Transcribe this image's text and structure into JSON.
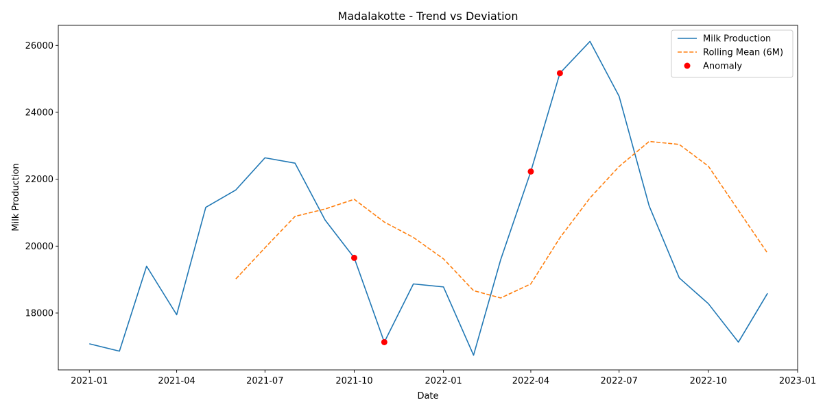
{
  "chart_data": {
    "type": "line",
    "title": "Madalakotte - Trend vs Deviation",
    "xlabel": "Date",
    "ylabel": "Milk Production",
    "x": [
      "2021-01-01",
      "2021-02-01",
      "2021-03-01",
      "2021-04-01",
      "2021-05-01",
      "2021-06-01",
      "2021-07-01",
      "2021-08-01",
      "2021-09-01",
      "2021-10-01",
      "2021-11-01",
      "2021-12-01",
      "2022-01-01",
      "2022-02-01",
      "2022-03-01",
      "2022-04-01",
      "2022-05-01",
      "2022-06-01",
      "2022-07-01",
      "2022-08-01",
      "2022-09-01",
      "2022-10-01",
      "2022-11-01",
      "2022-12-01"
    ],
    "x_ticks": [
      "2021-01",
      "2021-04",
      "2021-07",
      "2021-10",
      "2022-01",
      "2022-04",
      "2022-07",
      "2022-10",
      "2023-01"
    ],
    "xlim": [
      "2020-11-30",
      "2023-01-01"
    ],
    "y_ticks": [
      18000,
      20000,
      22000,
      24000,
      26000
    ],
    "ylim": [
      16300,
      26600
    ],
    "grid": false,
    "legend_position": "top-right",
    "series": [
      {
        "name": "Milk Production",
        "style": "solid",
        "color": "#1f77b4",
        "values": [
          17080,
          16860,
          19400,
          17950,
          21160,
          21680,
          22640,
          22480,
          20780,
          19650,
          17130,
          18870,
          18780,
          16740,
          19600,
          22230,
          25170,
          26120,
          24480,
          21200,
          19050,
          18280,
          17130,
          18590
        ]
      },
      {
        "name": "Rolling Mean (6M)",
        "style": "dashed",
        "color": "#ff7f0e",
        "values": [
          null,
          null,
          null,
          null,
          null,
          19020,
          19950,
          20890,
          21110,
          21400,
          20720,
          20260,
          19620,
          18670,
          18450,
          18870,
          20250,
          21440,
          22380,
          23130,
          23040,
          22390,
          21070,
          19790
        ]
      }
    ],
    "anomalies": {
      "name": "Anomaly",
      "color": "#ff0000",
      "points": [
        {
          "x": "2021-10-01",
          "y": 19650
        },
        {
          "x": "2021-11-01",
          "y": 17130
        },
        {
          "x": "2022-04-01",
          "y": 22230
        },
        {
          "x": "2022-05-01",
          "y": 25170
        }
      ]
    }
  }
}
